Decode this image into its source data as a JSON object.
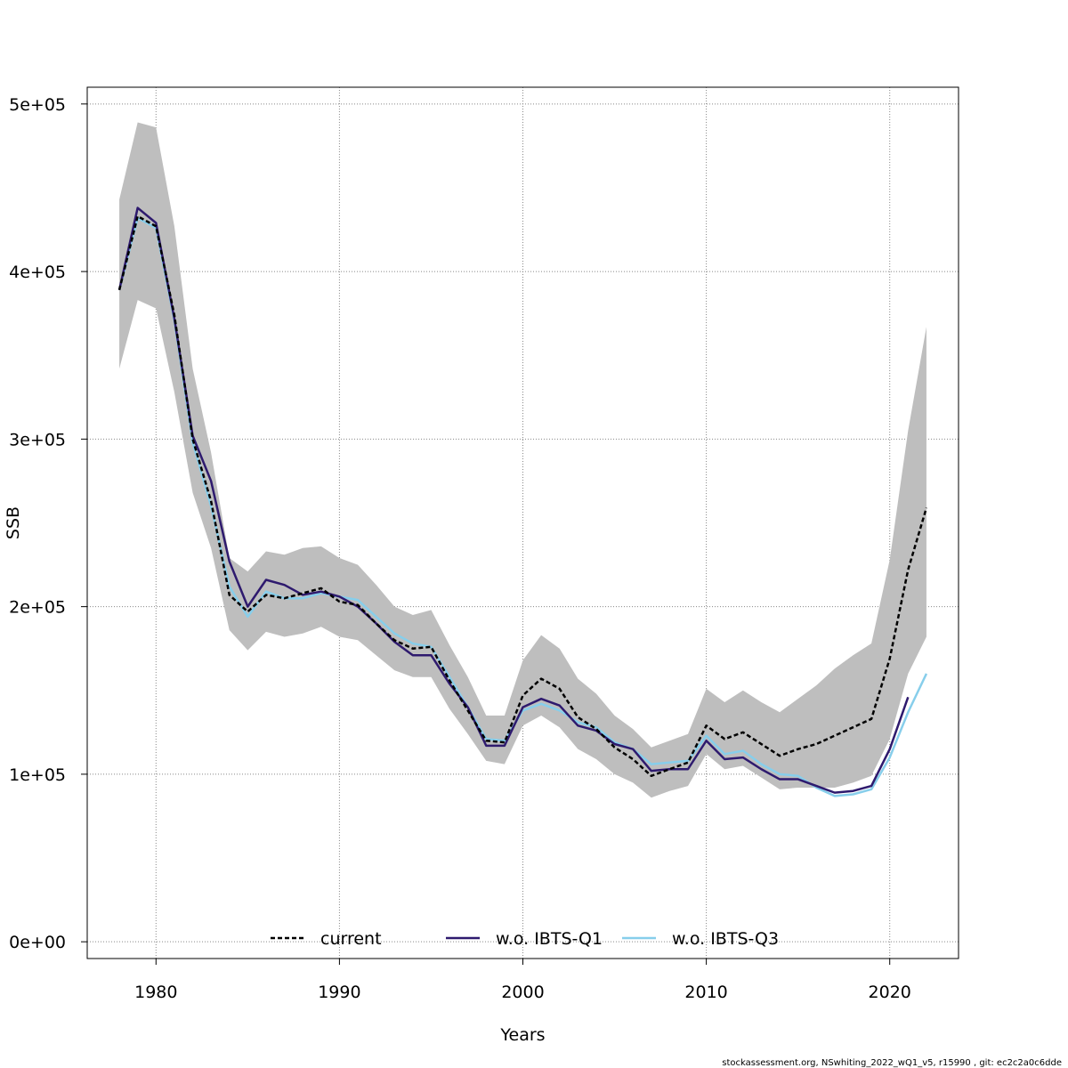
{
  "chart_data": {
    "type": "line",
    "xlabel": "Years",
    "ylabel": "SSB",
    "xlim": [
      1976.25,
      2023.75
    ],
    "ylim": [
      -10000,
      510000
    ],
    "x_ticks": [
      1980,
      1990,
      2000,
      2010,
      2020
    ],
    "x_tick_labels": [
      "1980",
      "1990",
      "2000",
      "2010",
      "2020"
    ],
    "y_ticks": [
      0,
      100000,
      200000,
      300000,
      400000,
      500000
    ],
    "y_tick_labels": [
      "0e+00",
      "1e+05",
      "2e+05",
      "3e+05",
      "4e+05",
      "5e+05"
    ],
    "grid": true,
    "legend_position": "bottom",
    "years": [
      1978,
      1979,
      1980,
      1981,
      1982,
      1983,
      1984,
      1985,
      1986,
      1987,
      1988,
      1989,
      1990,
      1991,
      1992,
      1993,
      1994,
      1995,
      1996,
      1997,
      1998,
      1999,
      2000,
      2001,
      2002,
      2003,
      2004,
      2005,
      2006,
      2007,
      2008,
      2009,
      2010,
      2011,
      2012,
      2013,
      2014,
      2015,
      2016,
      2017,
      2018,
      2019,
      2020,
      2021,
      2022
    ],
    "confidence_band": {
      "color": "#bebebe",
      "lower": [
        342000,
        383000,
        378000,
        328000,
        268000,
        235000,
        186000,
        174000,
        185000,
        182000,
        184000,
        188000,
        182000,
        180000,
        171000,
        162000,
        158000,
        158000,
        139000,
        124000,
        108000,
        106000,
        129000,
        135000,
        128000,
        115000,
        109000,
        100000,
        95000,
        86000,
        90000,
        93000,
        112000,
        103000,
        105000,
        98000,
        91000,
        92000,
        92000,
        92000,
        95000,
        99000,
        121000,
        160000,
        182000
      ],
      "upper": [
        443000,
        489000,
        486000,
        427000,
        342000,
        292000,
        229000,
        221000,
        233000,
        231000,
        235000,
        236000,
        229000,
        225000,
        213000,
        200000,
        195000,
        198000,
        177000,
        158000,
        135000,
        135000,
        168000,
        183000,
        175000,
        157000,
        148000,
        135000,
        127000,
        116000,
        120000,
        124000,
        151000,
        143000,
        150000,
        143000,
        137000,
        145000,
        153000,
        163000,
        171000,
        178000,
        228000,
        305000,
        367000
      ]
    },
    "series": [
      {
        "name": "current",
        "color": "#000000",
        "dash": "5,3",
        "values": [
          389000,
          433000,
          427000,
          374000,
          300000,
          263000,
          207000,
          197000,
          207000,
          205000,
          208000,
          211000,
          203000,
          201000,
          190000,
          180000,
          175000,
          176000,
          156000,
          138000,
          120000,
          119000,
          147000,
          157000,
          151000,
          134000,
          127000,
          116000,
          109000,
          99000,
          103000,
          107000,
          129000,
          121000,
          125000,
          118000,
          111000,
          115000,
          118000,
          123000,
          128000,
          133000,
          169000,
          222000,
          259000
        ]
      },
      {
        "name": "w.o. IBTS-Q1",
        "color": "#2e1a6e",
        "dash": "",
        "values": [
          389000,
          438000,
          429000,
          372000,
          302000,
          275000,
          227000,
          200000,
          216000,
          213000,
          207000,
          209000,
          206000,
          200000,
          190000,
          179000,
          171000,
          171000,
          154000,
          140000,
          117000,
          117000,
          140000,
          145000,
          141000,
          129000,
          126000,
          118000,
          115000,
          102000,
          103000,
          103000,
          120000,
          109000,
          110000,
          103000,
          97000,
          97000,
          93000,
          89000,
          90000,
          93000,
          115000,
          146000,
          null
        ]
      },
      {
        "name": "w.o. IBTS-Q3",
        "color": "#87ceeb",
        "dash": "",
        "values": [
          389000,
          432000,
          426000,
          371000,
          298000,
          260000,
          212000,
          194000,
          209000,
          205000,
          205000,
          208000,
          206000,
          204000,
          194000,
          184000,
          178000,
          176000,
          158000,
          140000,
          121000,
          120000,
          138000,
          142000,
          138000,
          131000,
          128000,
          119000,
          115000,
          106000,
          107000,
          108000,
          123000,
          112000,
          114000,
          106000,
          100000,
          99000,
          92000,
          87000,
          88000,
          91000,
          110000,
          137000,
          160000
        ]
      }
    ]
  },
  "footer_text": "stockassessment.org, NSwhiting_2022_wQ1_v5, r15990 , git: ec2c2a0c6dde"
}
